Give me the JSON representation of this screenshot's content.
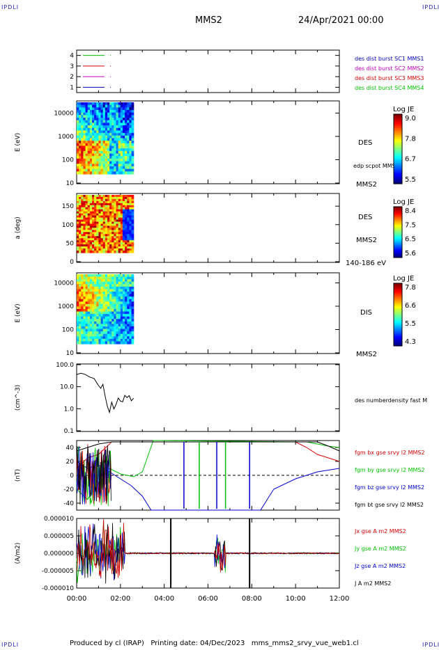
{
  "header": {
    "corner_label": "IPDLI",
    "spacecraft": "MMS2",
    "date": "24/Apr/2021 00:00"
  },
  "footer": {
    "text": "Produced by cl (IRAP)   Printing date: 04/Dec/2023   mms_mms2_srvy_vue_web1.cl"
  },
  "colors": {
    "bx": "#d00000",
    "by": "#00c000",
    "bz": "#0000d0",
    "bt": "#000000",
    "mms1": "#0000c0",
    "mms2": "#c000c0",
    "mms3": "#d00000",
    "mms4": "#00c000"
  },
  "chart_data": [
    {
      "type": "line",
      "title": "",
      "yticks": [
        "1",
        "2",
        "3",
        "4"
      ],
      "ylim": [
        0.5,
        4.5
      ],
      "legend": [
        "des dist burst SC1 MMS1",
        "des dist burst SC2 MMS2",
        "des dist burst SC3 MMS3",
        "des dist burst SC4 MMS4"
      ],
      "series": [
        {
          "name": "des dist burst SC1 MMS1",
          "level": 1
        },
        {
          "name": "des dist burst SC2 MMS2",
          "level": 2
        },
        {
          "name": "des dist burst SC3 MMS3",
          "level": 3
        },
        {
          "name": "des dist burst SC4 MMS4",
          "level": 4
        }
      ]
    },
    {
      "type": "heatmap",
      "ylabel": "E (eV)",
      "yticks": [
        "10",
        "100",
        "1000",
        "10000"
      ],
      "labels": [
        "DES",
        "edp scpot MMS2",
        "MMS2"
      ],
      "colorbar": {
        "title": "Log JE",
        "ticks": [
          "9.0",
          "7.8",
          "6.7",
          "5.5"
        ]
      },
      "x_range_hours": [
        0,
        2.6
      ]
    },
    {
      "type": "heatmap",
      "ylabel": "a (deg)",
      "yticks": [
        "0",
        "50",
        "100",
        "150"
      ],
      "labels": [
        "DES",
        "MMS2",
        "140-186 eV"
      ],
      "colorbar": {
        "title": "Log JE",
        "ticks": [
          "8.4",
          "7.5",
          "6.5",
          "5.6"
        ]
      },
      "x_range_hours": [
        0,
        2.6
      ]
    },
    {
      "type": "heatmap",
      "ylabel": "E (eV)",
      "yticks": [
        "10",
        "100",
        "1000",
        "10000"
      ],
      "labels": [
        "DIS",
        "MMS2"
      ],
      "colorbar": {
        "title": "Log JE",
        "ticks": [
          "7.8",
          "6.6",
          "5.5",
          "4.3"
        ]
      },
      "x_range_hours": [
        0,
        2.6
      ]
    },
    {
      "type": "line",
      "ylabel": "(cm^-3)",
      "yticks": [
        "0.1",
        "1.0",
        "10.0",
        "100.0"
      ],
      "ylim": [
        0.1,
        100
      ],
      "scale": "log",
      "legend": [
        "des numberdensity fast M"
      ],
      "x": [
        0.0,
        0.2,
        0.4,
        0.6,
        0.8,
        0.9,
        1.0,
        1.1,
        1.2,
        1.3,
        1.4,
        1.5,
        1.6,
        1.7,
        1.8,
        1.9,
        2.0,
        2.1,
        2.2,
        2.3,
        2.4,
        2.5,
        2.6
      ],
      "values": [
        40,
        35,
        30,
        28,
        25,
        18,
        12,
        8,
        15,
        4,
        1.5,
        0.8,
        2.5,
        1.0,
        1.5,
        3.0,
        2.0,
        2.5,
        4.0,
        3.0,
        3.5,
        2.5,
        3.0
      ]
    },
    {
      "type": "line",
      "ylabel": "(nT)",
      "yticks": [
        "-40",
        "-20",
        "0",
        "20",
        "40"
      ],
      "ylim": [
        -50,
        50
      ],
      "legend": [
        "fgm bx gse srvy l2 MMS2",
        "fgm by gse srvy l2 MMS2",
        "fgm bz gse srvy l2 MMS2",
        "fgm bt gse srvy l2 MMS2"
      ],
      "series": [
        {
          "name": "fgm bx gse srvy l2 MMS2",
          "x": [
            0,
            0.5,
            1.0,
            1.6,
            10.0,
            10.5,
            11.0,
            11.5,
            12.0
          ],
          "values": [
            10,
            25,
            30,
            48,
            48,
            40,
            30,
            25,
            20
          ]
        },
        {
          "name": "fgm by gse srvy l2 MMS2",
          "x": [
            0,
            0.5,
            1.0,
            1.5,
            2.0,
            2.6,
            3.0,
            3.5,
            10.5,
            11.0,
            11.5,
            12.0
          ],
          "values": [
            -20,
            -35,
            -10,
            10,
            2,
            -2,
            5,
            50,
            48,
            45,
            42,
            40
          ]
        },
        {
          "name": "fgm bz gse srvy l2 MMS2",
          "x": [
            0,
            0.5,
            1.0,
            1.5,
            2.0,
            2.5,
            3.0,
            3.4,
            8.4,
            9.0,
            10.0,
            11.0,
            12.0
          ],
          "values": [
            20,
            10,
            15,
            5,
            -5,
            -15,
            -30,
            -50,
            -50,
            -20,
            -5,
            5,
            10
          ]
        },
        {
          "name": "fgm bt gse srvy l2 MMS2",
          "x": [
            0,
            0.5,
            1.0,
            1.6,
            11.0,
            11.5,
            12.0
          ],
          "values": [
            35,
            40,
            45,
            48,
            48,
            42,
            35
          ]
        }
      ]
    },
    {
      "type": "line",
      "ylabel": "(A/m2)",
      "yticks": [
        "-0.000010",
        "-0.000005",
        "0.000000",
        "0.000005",
        "0.000010"
      ],
      "ylim": [
        -1e-05,
        1e-05
      ],
      "legend": [
        "Jx gse A m2 MMS2",
        "Jy gse A m2 MMS2",
        "Jz gse A m2 MMS2",
        "J A m2 MMS2"
      ]
    }
  ],
  "xaxis": {
    "ticks": [
      "00:00",
      "02:00",
      "04:00",
      "06:00",
      "08:00",
      "10:00",
      "12:00"
    ],
    "range_hours": [
      0,
      12
    ]
  }
}
